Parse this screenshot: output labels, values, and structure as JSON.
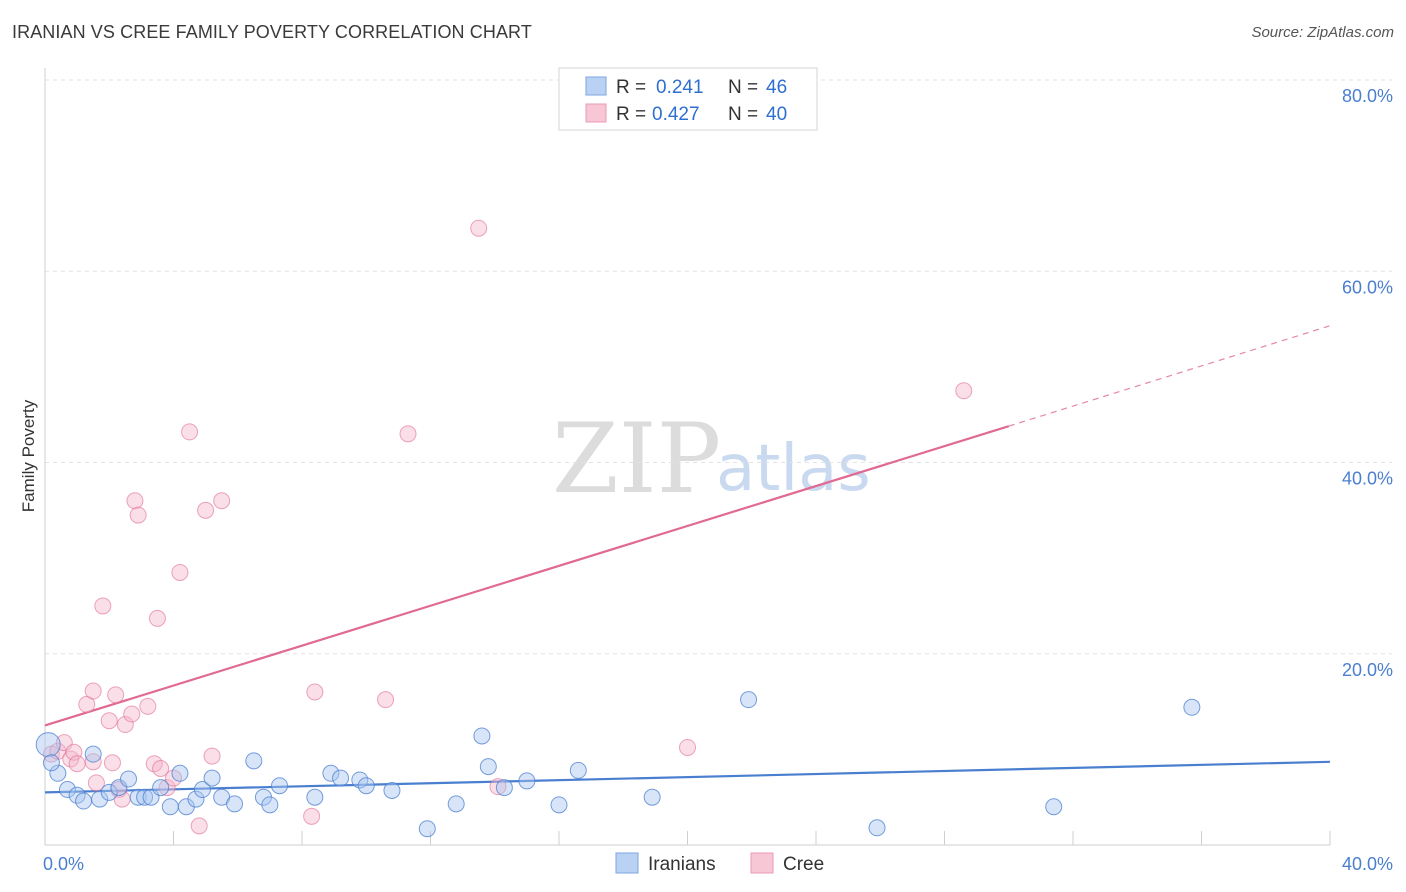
{
  "title": "IRANIAN VS CREE FAMILY POVERTY CORRELATION CHART",
  "source": "Source: ZipAtlas.com",
  "watermark": {
    "zip": "ZIP",
    "atlas": "atlas"
  },
  "colors": {
    "iranians": "#4a7fd0",
    "iranians_fill": "#a9c6f0",
    "cree": "#e06a92",
    "cree_fill": "#f5b8cb",
    "grid": "#e3e3e3",
    "axis": "#cfcfcf"
  },
  "legend": {
    "series": [
      {
        "r_label": "R = ",
        "r_value": "0.241",
        "n_label": "N = ",
        "n_value": "46"
      },
      {
        "r_label": "R = ",
        "r_value": "0.427",
        "n_label": "N = ",
        "n_value": "40"
      }
    ]
  },
  "bottom_legend": [
    "Iranians",
    "Cree"
  ],
  "chart_data": {
    "type": "scatter",
    "title": "IRANIAN VS CREE FAMILY POVERTY CORRELATION CHART",
    "xlabel": "",
    "ylabel": "Family Poverty",
    "xlim": [
      0,
      40
    ],
    "ylim": [
      0,
      80
    ],
    "x_tick_labels": [
      "0.0%",
      "40.0%"
    ],
    "y_ticks": [
      20,
      40,
      60,
      80
    ],
    "y_tick_labels": [
      "20.0%",
      "40.0%",
      "60.0%",
      "80.0%"
    ],
    "legend_placement": "top-center",
    "series": [
      {
        "name": "Iranians",
        "r": 0.241,
        "n": 46,
        "trend": {
          "x1": 0,
          "y1": 5.5,
          "x2": 40,
          "y2": 8.7,
          "dashed_from": null
        },
        "points": [
          [
            0.1,
            10.5
          ],
          [
            0.4,
            7.5
          ],
          [
            0.7,
            5.8
          ],
          [
            1.0,
            5.2
          ],
          [
            1.2,
            4.6
          ],
          [
            1.5,
            9.5
          ],
          [
            1.7,
            4.8
          ],
          [
            2.0,
            5.5
          ],
          [
            2.3,
            6.0
          ],
          [
            2.6,
            6.9
          ],
          [
            2.9,
            5.0
          ],
          [
            3.1,
            5.0
          ],
          [
            3.3,
            5.0
          ],
          [
            3.6,
            6.0
          ],
          [
            3.9,
            4.0
          ],
          [
            4.2,
            7.5
          ],
          [
            4.4,
            4.0
          ],
          [
            4.7,
            4.8
          ],
          [
            4.9,
            5.8
          ],
          [
            5.2,
            7.0
          ],
          [
            5.5,
            5.0
          ],
          [
            5.9,
            4.3
          ],
          [
            6.5,
            8.8
          ],
          [
            6.8,
            5.0
          ],
          [
            7.0,
            4.2
          ],
          [
            7.3,
            6.2
          ],
          [
            8.4,
            5.0
          ],
          [
            8.9,
            7.5
          ],
          [
            9.2,
            7.0
          ],
          [
            9.8,
            6.8
          ],
          [
            10.0,
            6.2
          ],
          [
            10.8,
            5.7
          ],
          [
            11.9,
            1.7
          ],
          [
            12.8,
            4.3
          ],
          [
            13.6,
            11.4
          ],
          [
            13.8,
            8.2
          ],
          [
            14.3,
            6.0
          ],
          [
            15.0,
            6.7
          ],
          [
            16.0,
            4.2
          ],
          [
            16.6,
            7.8
          ],
          [
            18.9,
            5.0
          ],
          [
            21.9,
            15.2
          ],
          [
            25.9,
            1.8
          ],
          [
            31.4,
            4.0
          ],
          [
            35.7,
            14.4
          ],
          [
            0.2,
            8.6
          ]
        ]
      },
      {
        "name": "Cree",
        "r": 0.427,
        "n": 40,
        "trend": {
          "x1": 0,
          "y1": 12.5,
          "x2": 30.0,
          "y2": 43.8,
          "dashed_from": 30.0,
          "dash_end_x": 40.0,
          "dash_end_y": 54.3
        },
        "points": [
          [
            0.2,
            9.5
          ],
          [
            0.4,
            9.8
          ],
          [
            0.6,
            10.7
          ],
          [
            0.8,
            9.0
          ],
          [
            0.9,
            9.7
          ],
          [
            1.0,
            8.5
          ],
          [
            1.3,
            14.7
          ],
          [
            1.5,
            8.7
          ],
          [
            1.5,
            16.1
          ],
          [
            1.6,
            6.5
          ],
          [
            1.8,
            25.0
          ],
          [
            2.0,
            13.0
          ],
          [
            2.1,
            8.6
          ],
          [
            2.2,
            15.7
          ],
          [
            2.3,
            5.8
          ],
          [
            2.4,
            4.8
          ],
          [
            2.5,
            12.6
          ],
          [
            2.7,
            13.7
          ],
          [
            2.8,
            36.0
          ],
          [
            2.9,
            34.5
          ],
          [
            3.2,
            14.5
          ],
          [
            3.4,
            8.5
          ],
          [
            3.5,
            23.7
          ],
          [
            3.6,
            8.0
          ],
          [
            3.8,
            6.0
          ],
          [
            4.0,
            7.0
          ],
          [
            4.2,
            28.5
          ],
          [
            4.5,
            43.2
          ],
          [
            4.8,
            2.0
          ],
          [
            5.0,
            35.0
          ],
          [
            5.2,
            9.3
          ],
          [
            5.5,
            36.0
          ],
          [
            8.3,
            3.0
          ],
          [
            8.4,
            16.0
          ],
          [
            10.6,
            15.2
          ],
          [
            11.3,
            43.0
          ],
          [
            13.5,
            64.5
          ],
          [
            14.1,
            6.1
          ],
          [
            20.0,
            10.2
          ],
          [
            28.6,
            47.5
          ]
        ]
      }
    ]
  }
}
